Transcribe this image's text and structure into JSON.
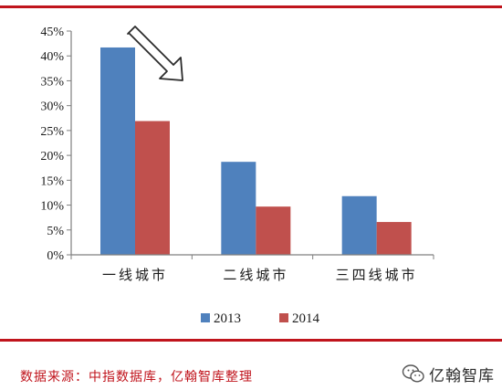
{
  "chart_data": {
    "type": "bar",
    "categories": [
      "一线城市",
      "二线城市",
      "三四线城市"
    ],
    "series": [
      {
        "name": "2013",
        "values": [
          41.7,
          18.7,
          11.8
        ],
        "color": "#4f81bd"
      },
      {
        "name": "2014",
        "values": [
          26.9,
          9.7,
          6.6
        ],
        "color": "#c0504d"
      }
    ],
    "ylim": [
      0,
      45
    ],
    "ytick_step": 5,
    "ytick_labels": [
      "0%",
      "5%",
      "10%",
      "15%",
      "20%",
      "25%",
      "30%",
      "35%",
      "40%",
      "45%"
    ],
    "legend_position": "bottom",
    "grid": false,
    "annotation": "arrow-down-right-icon"
  },
  "source_text": "数据来源：中指数据库，亿翰智库整理",
  "watermark": {
    "icon": "wechat-icon",
    "name": "亿翰智库"
  },
  "colors": {
    "rule": "#c0141c",
    "axis": "#7f7f7f"
  }
}
